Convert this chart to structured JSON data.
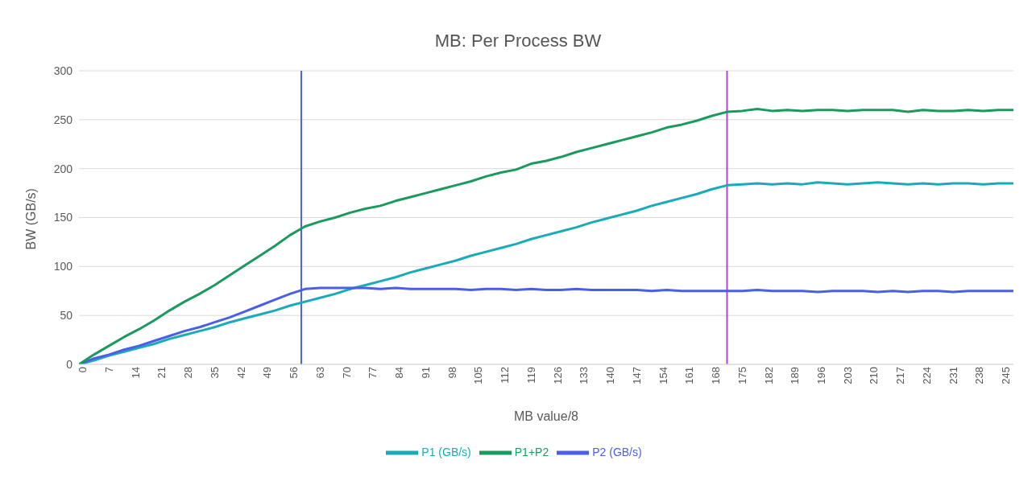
{
  "chart_data": {
    "type": "line",
    "title": "MB: Per Process BW",
    "xlabel": "MB value/8",
    "ylabel": "BW (GB/s)",
    "x": [
      0,
      4,
      8,
      12,
      16,
      20,
      24,
      28,
      32,
      36,
      40,
      44,
      48,
      52,
      56,
      60,
      64,
      68,
      72,
      76,
      80,
      84,
      88,
      92,
      96,
      100,
      104,
      108,
      112,
      116,
      120,
      124,
      128,
      132,
      136,
      140,
      144,
      148,
      152,
      156,
      160,
      164,
      168,
      172,
      176,
      180,
      184,
      188,
      192,
      196,
      200,
      204,
      208,
      212,
      216,
      220,
      224,
      228,
      232,
      236,
      240,
      244,
      248
    ],
    "series": [
      {
        "name": "P1 (GB/s)",
        "color": "#1aabb8",
        "values": [
          0,
          4,
          9,
          13,
          17,
          21,
          26,
          30,
          34,
          38,
          43,
          47,
          51,
          55,
          60,
          64,
          68,
          72,
          77,
          81,
          85,
          89,
          94,
          98,
          102,
          106,
          111,
          115,
          119,
          123,
          128,
          132,
          136,
          140,
          145,
          149,
          153,
          157,
          162,
          166,
          170,
          174,
          179,
          183,
          184,
          185,
          184,
          185,
          184,
          186,
          185,
          184,
          185,
          186,
          185,
          184,
          185,
          184,
          185,
          185,
          184,
          185,
          185
        ]
      },
      {
        "name": "P2 (GB/s)",
        "color": "#4a5ee8",
        "values": [
          0,
          6,
          10,
          15,
          19,
          24,
          29,
          34,
          38,
          43,
          48,
          54,
          60,
          66,
          72,
          77,
          78,
          78,
          78,
          78,
          77,
          78,
          77,
          77,
          77,
          77,
          76,
          77,
          77,
          76,
          77,
          76,
          76,
          77,
          76,
          76,
          76,
          76,
          75,
          76,
          75,
          75,
          75,
          75,
          75,
          76,
          75,
          75,
          75,
          74,
          75,
          75,
          75,
          74,
          75,
          74,
          75,
          75,
          74,
          75,
          75,
          75,
          75
        ]
      },
      {
        "name": "P1+P2",
        "color": "#1a9a5e",
        "values": [
          0,
          10,
          19,
          28,
          36,
          45,
          55,
          64,
          72,
          81,
          91,
          101,
          111,
          121,
          132,
          141,
          146,
          150,
          155,
          159,
          162,
          167,
          171,
          175,
          179,
          183,
          187,
          192,
          196,
          199,
          205,
          208,
          212,
          217,
          221,
          225,
          229,
          233,
          237,
          242,
          245,
          249,
          254,
          258,
          259,
          261,
          259,
          260,
          259,
          260,
          260,
          259,
          260,
          260,
          260,
          258,
          260,
          259,
          259,
          260,
          259,
          260,
          260
        ]
      }
    ],
    "xlim": [
      0,
      248
    ],
    "xticks": [
      0,
      7,
      14,
      21,
      28,
      35,
      42,
      49,
      56,
      63,
      70,
      77,
      84,
      91,
      98,
      105,
      112,
      119,
      126,
      133,
      140,
      147,
      154,
      161,
      168,
      175,
      182,
      189,
      196,
      203,
      210,
      217,
      224,
      231,
      238,
      245
    ],
    "ylim": [
      0,
      300
    ],
    "yticks": [
      0,
      50,
      100,
      150,
      200,
      250,
      300
    ],
    "ref_lines": [
      {
        "axis": "x",
        "value": 59,
        "color": "#4a62e0"
      },
      {
        "axis": "x",
        "value": 172,
        "color": "#b93fdc"
      }
    ],
    "grid": "y",
    "legend": "bottom",
    "marker": "none",
    "line_style": "solid"
  }
}
